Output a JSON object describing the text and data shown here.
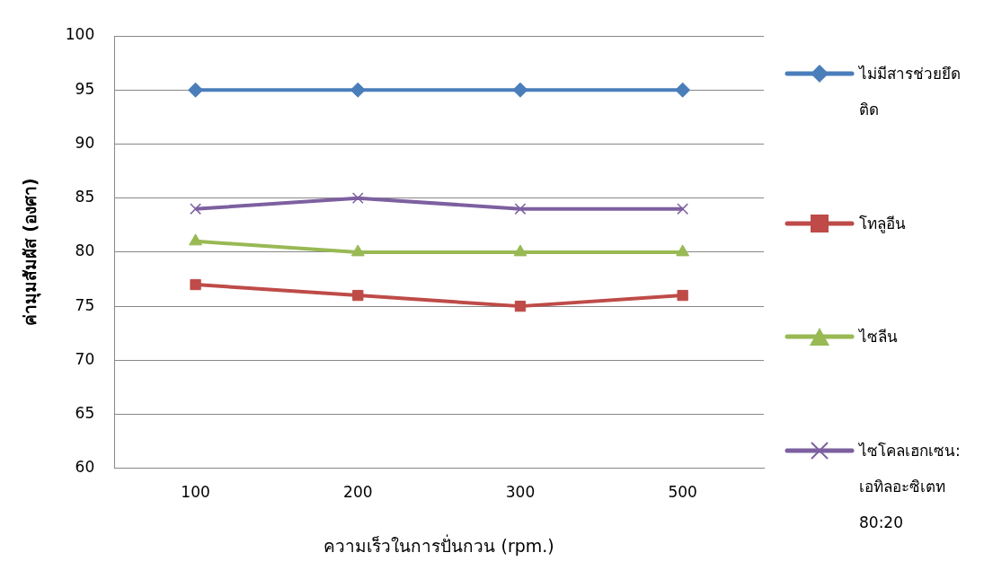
{
  "chart_data": {
    "type": "line",
    "xlabel": "ความเร็วในการปั่นกวน (rpm.)",
    "ylabel": "ค่ามุมสัมผัส (องศา)",
    "categories": [
      "100",
      "200",
      "300",
      "500"
    ],
    "ylim": [
      60,
      100
    ],
    "yticks": [
      60,
      65,
      70,
      75,
      80,
      85,
      90,
      95,
      100
    ],
    "grid": "y",
    "legend": "right",
    "series": [
      {
        "name": "ไม่มีสารช่วยยึดติด",
        "color": "#4a7ebb",
        "marker": "diamond",
        "values": [
          95,
          95,
          95,
          95
        ]
      },
      {
        "name": "โทลูอีน",
        "color": "#be4b48",
        "marker": "square",
        "values": [
          77,
          76,
          75,
          76
        ]
      },
      {
        "name": "ไซลีน",
        "color": "#98b954",
        "marker": "triangle",
        "values": [
          81,
          80,
          80,
          80
        ]
      },
      {
        "name": "ไซโคลเฮกเซน: เอทิลอะซิเตท 80:20",
        "color": "#7d60a0",
        "marker": "cross",
        "values": [
          84,
          85,
          84,
          84
        ]
      }
    ]
  }
}
